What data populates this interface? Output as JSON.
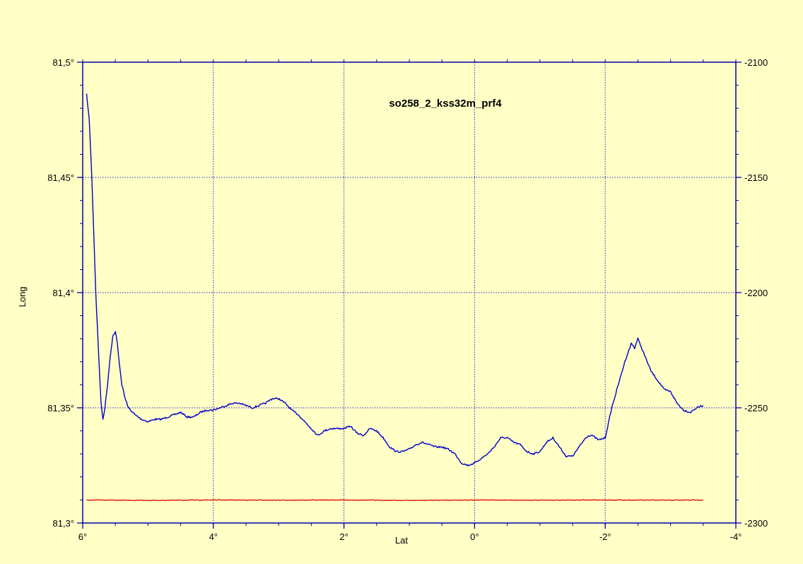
{
  "chart_data": {
    "type": "line",
    "title": "so258_2_kss32m_prf4",
    "xlabel": "Lat",
    "ylabel": "Long",
    "xlim": [
      6,
      -4
    ],
    "ylim_left": [
      81.3,
      81.5
    ],
    "ylim_right": [
      -2300,
      -2100
    ],
    "x_ticks": [
      6,
      4,
      2,
      0,
      -2,
      -4
    ],
    "x_tick_labels": [
      "6°",
      "4°",
      "2°",
      "0°",
      "-2°",
      "-4°"
    ],
    "y_left_ticks": [
      81.3,
      81.35,
      81.4,
      81.45,
      81.5
    ],
    "y_left_tick_labels": [
      "81,3°",
      "81,35°",
      "81,4°",
      "81,45°",
      "81,5°"
    ],
    "y_right_ticks": [
      -2300,
      -2250,
      -2200,
      -2150,
      -2100
    ],
    "y_right_tick_labels": [
      "-2300",
      "-2250",
      "-2200",
      "-2150",
      "-2100"
    ],
    "grid": true,
    "series": [
      {
        "axis": "left",
        "color": "#0000cc",
        "x": [
          5.94,
          5.9,
          5.86,
          5.8,
          5.75,
          5.72,
          5.69,
          5.66,
          5.62,
          5.58,
          5.54,
          5.5,
          5.47,
          5.45,
          5.4,
          5.35,
          5.3,
          5.2,
          5.1,
          5.0,
          4.9,
          4.8,
          4.7,
          4.6,
          4.5,
          4.4,
          4.3,
          4.2,
          4.1,
          4.0,
          3.9,
          3.8,
          3.7,
          3.6,
          3.5,
          3.4,
          3.3,
          3.2,
          3.1,
          3.0,
          2.9,
          2.8,
          2.7,
          2.6,
          2.5,
          2.4,
          2.3,
          2.2,
          2.1,
          2.0,
          1.9,
          1.8,
          1.7,
          1.6,
          1.5,
          1.4,
          1.3,
          1.2,
          1.1,
          1.0,
          0.9,
          0.8,
          0.7,
          0.6,
          0.5,
          0.4,
          0.3,
          0.2,
          0.1,
          0.0,
          -0.1,
          -0.2,
          -0.3,
          -0.4,
          -0.5,
          -0.6,
          -0.7,
          -0.8,
          -0.9,
          -1.0,
          -1.1,
          -1.2,
          -1.3,
          -1.4,
          -1.5,
          -1.6,
          -1.7,
          -1.75,
          -1.8,
          -1.9,
          -2.0,
          -2.1,
          -2.2,
          -2.3,
          -2.4,
          -2.45,
          -2.5,
          -2.6,
          -2.7,
          -2.8,
          -2.9,
          -3.0,
          -3.1,
          -3.2,
          -3.3,
          -3.4,
          -3.5
        ],
        "y": [
          81.486,
          81.475,
          81.45,
          81.4,
          81.37,
          81.352,
          81.345,
          81.35,
          81.36,
          81.372,
          81.381,
          81.383,
          81.378,
          81.372,
          81.36,
          81.354,
          81.35,
          81.347,
          81.345,
          81.344,
          81.345,
          81.345,
          81.346,
          81.347,
          81.348,
          81.346,
          81.346,
          81.348,
          81.349,
          81.349,
          81.35,
          81.351,
          81.352,
          81.352,
          81.351,
          81.35,
          81.351,
          81.352,
          81.354,
          81.354,
          81.352,
          81.349,
          81.347,
          81.344,
          81.341,
          81.338,
          81.34,
          81.341,
          81.341,
          81.341,
          81.342,
          81.339,
          81.338,
          81.341,
          81.34,
          81.337,
          81.333,
          81.331,
          81.331,
          81.332,
          81.334,
          81.335,
          81.334,
          81.333,
          81.333,
          81.332,
          81.33,
          81.326,
          81.325,
          81.326,
          81.328,
          81.33,
          81.333,
          81.337,
          81.337,
          81.335,
          81.334,
          81.331,
          81.33,
          81.331,
          81.335,
          81.337,
          81.333,
          81.329,
          81.329,
          81.333,
          81.337,
          81.338,
          81.338,
          81.336,
          81.337,
          81.35,
          81.36,
          81.37,
          81.378,
          81.376,
          81.38,
          81.373,
          81.366,
          81.362,
          81.358,
          81.357,
          81.352,
          81.349,
          81.348,
          81.35,
          81.351
        ]
      },
      {
        "axis": "right",
        "color": "#dd0000",
        "x": [
          5.94,
          5.0,
          4.0,
          3.0,
          2.0,
          1.0,
          0.0,
          -1.0,
          -2.0,
          -3.0,
          -3.5
        ],
        "y": [
          -2290.0,
          -2290.2,
          -2290.0,
          -2290.1,
          -2290.0,
          -2290.2,
          -2290.0,
          -2290.1,
          -2290.0,
          -2290.1,
          -2290.0
        ]
      }
    ]
  }
}
